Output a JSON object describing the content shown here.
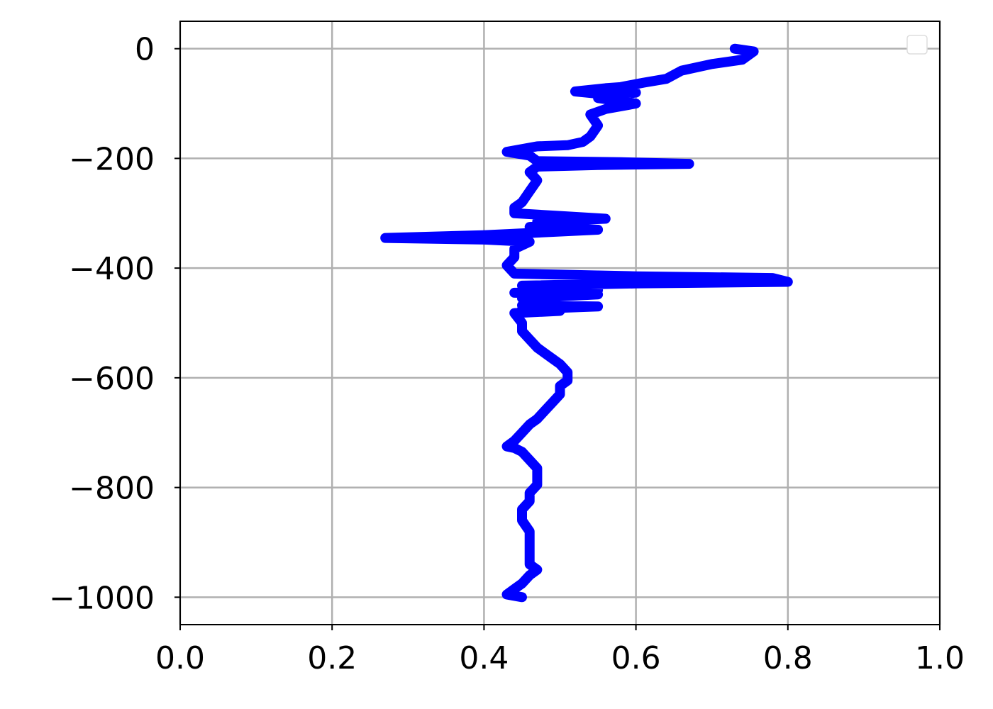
{
  "chart_data": {
    "type": "line",
    "title": "",
    "xlabel": "",
    "ylabel": "",
    "xlim": [
      0.0,
      1.0
    ],
    "ylim": [
      -1050,
      50
    ],
    "x_ticks": [
      0.0,
      0.2,
      0.4,
      0.6,
      0.8,
      1.0
    ],
    "x_tick_labels": [
      "0.0",
      "0.2",
      "0.4",
      "0.6",
      "0.8",
      "1.0"
    ],
    "y_ticks": [
      0,
      -200,
      -400,
      -600,
      -800,
      -1000
    ],
    "y_tick_labels": [
      "0",
      "−200",
      "−400",
      "−600",
      "−800",
      "−1000"
    ],
    "grid": true,
    "legend": {
      "placement": "upper right",
      "entries": []
    },
    "colors": {
      "line": "#0000ff",
      "grid": "#b0b0b0",
      "axes": "#000000"
    },
    "series": [
      {
        "color": "#0000ff",
        "points": [
          [
            0.73,
            0
          ],
          [
            0.755,
            -5
          ],
          [
            0.74,
            -20
          ],
          [
            0.7,
            -28
          ],
          [
            0.66,
            -40
          ],
          [
            0.64,
            -55
          ],
          [
            0.61,
            -62
          ],
          [
            0.58,
            -70
          ],
          [
            0.56,
            -72
          ],
          [
            0.52,
            -78
          ],
          [
            0.55,
            -82
          ],
          [
            0.6,
            -80
          ],
          [
            0.55,
            -90
          ],
          [
            0.6,
            -100
          ],
          [
            0.56,
            -110
          ],
          [
            0.54,
            -120
          ],
          [
            0.55,
            -140
          ],
          [
            0.54,
            -160
          ],
          [
            0.53,
            -170
          ],
          [
            0.51,
            -176
          ],
          [
            0.47,
            -178
          ],
          [
            0.43,
            -188
          ],
          [
            0.46,
            -195
          ],
          [
            0.47,
            -205
          ],
          [
            0.58,
            -207
          ],
          [
            0.67,
            -210
          ],
          [
            0.55,
            -212
          ],
          [
            0.47,
            -215
          ],
          [
            0.46,
            -225
          ],
          [
            0.47,
            -240
          ],
          [
            0.46,
            -260
          ],
          [
            0.45,
            -280
          ],
          [
            0.44,
            -290
          ],
          [
            0.44,
            -300
          ],
          [
            0.5,
            -305
          ],
          [
            0.56,
            -310
          ],
          [
            0.47,
            -315
          ],
          [
            0.52,
            -320
          ],
          [
            0.46,
            -325
          ],
          [
            0.55,
            -330
          ],
          [
            0.4,
            -340
          ],
          [
            0.27,
            -345
          ],
          [
            0.4,
            -348
          ],
          [
            0.46,
            -352
          ],
          [
            0.44,
            -365
          ],
          [
            0.44,
            -380
          ],
          [
            0.43,
            -395
          ],
          [
            0.44,
            -410
          ],
          [
            0.6,
            -415
          ],
          [
            0.78,
            -418
          ],
          [
            0.8,
            -425
          ],
          [
            0.6,
            -428
          ],
          [
            0.45,
            -432
          ],
          [
            0.55,
            -440
          ],
          [
            0.44,
            -445
          ],
          [
            0.55,
            -448
          ],
          [
            0.45,
            -455
          ],
          [
            0.5,
            -462
          ],
          [
            0.45,
            -468
          ],
          [
            0.55,
            -470
          ],
          [
            0.45,
            -475
          ],
          [
            0.5,
            -478
          ],
          [
            0.44,
            -482
          ],
          [
            0.45,
            -500
          ],
          [
            0.45,
            -515
          ],
          [
            0.46,
            -530
          ],
          [
            0.47,
            -545
          ],
          [
            0.48,
            -555
          ],
          [
            0.49,
            -565
          ],
          [
            0.5,
            -575
          ],
          [
            0.51,
            -590
          ],
          [
            0.51,
            -605
          ],
          [
            0.5,
            -615
          ],
          [
            0.5,
            -630
          ],
          [
            0.49,
            -645
          ],
          [
            0.48,
            -660
          ],
          [
            0.47,
            -675
          ],
          [
            0.46,
            -685
          ],
          [
            0.45,
            -700
          ],
          [
            0.44,
            -715
          ],
          [
            0.43,
            -725
          ],
          [
            0.44,
            -728
          ],
          [
            0.45,
            -735
          ],
          [
            0.46,
            -750
          ],
          [
            0.47,
            -765
          ],
          [
            0.47,
            -780
          ],
          [
            0.47,
            -795
          ],
          [
            0.46,
            -810
          ],
          [
            0.46,
            -825
          ],
          [
            0.45,
            -840
          ],
          [
            0.45,
            -860
          ],
          [
            0.46,
            -880
          ],
          [
            0.46,
            -900
          ],
          [
            0.46,
            -920
          ],
          [
            0.46,
            -940
          ],
          [
            0.47,
            -950
          ],
          [
            0.46,
            -960
          ],
          [
            0.45,
            -975
          ],
          [
            0.44,
            -985
          ],
          [
            0.43,
            -995
          ],
          [
            0.45,
            -1000
          ]
        ]
      }
    ]
  }
}
